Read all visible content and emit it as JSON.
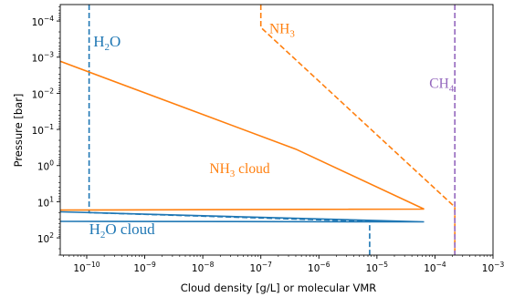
{
  "chart_data": {
    "type": "line",
    "title": "",
    "xlabel": "Cloud density [g/L] or molecular VMR",
    "ylabel": "Pressure [bar]",
    "xscale": "log",
    "yscale": "log",
    "y_inverted": true,
    "xlim": [
      3.5e-11,
      0.001
    ],
    "ylim": [
      300,
      3.5e-05
    ],
    "grid": false,
    "legend": "none",
    "x_tick_labels": [
      {
        "value": 1e-10,
        "base": "10",
        "exp": "−10"
      },
      {
        "value": 1e-09,
        "base": "10",
        "exp": "−9"
      },
      {
        "value": 1e-08,
        "base": "10",
        "exp": "−8"
      },
      {
        "value": 1e-07,
        "base": "10",
        "exp": "−7"
      },
      {
        "value": 1e-06,
        "base": "10",
        "exp": "−6"
      },
      {
        "value": 1e-05,
        "base": "10",
        "exp": "−5"
      },
      {
        "value": 0.0001,
        "base": "10",
        "exp": "−4"
      },
      {
        "value": 0.001,
        "base": "10",
        "exp": "−3"
      }
    ],
    "y_tick_labels": [
      {
        "value": 0.0001,
        "base": "10",
        "exp": "−4"
      },
      {
        "value": 0.001,
        "base": "10",
        "exp": "−3"
      },
      {
        "value": 0.01,
        "base": "10",
        "exp": "−2"
      },
      {
        "value": 0.1,
        "base": "10",
        "exp": "−1"
      },
      {
        "value": 1,
        "base": "10",
        "exp": "0"
      },
      {
        "value": 10,
        "base": "10",
        "exp": "1"
      },
      {
        "value": 100,
        "base": "10",
        "exp": "2"
      }
    ],
    "colors": {
      "h2o": "#1f77b4",
      "nh3": "#ff7f0e",
      "ch4": "#9467bd"
    },
    "series": [
      {
        "id": "h2o-vmr",
        "color": "#1f77b4",
        "style": "dashed",
        "points": [
          [
            1.1e-10,
            3.5e-05
          ],
          [
            1.1e-10,
            20
          ],
          [
            7.5e-06,
            35
          ],
          [
            7.5e-06,
            300
          ]
        ]
      },
      {
        "id": "nh3-vmr",
        "color": "#ff7f0e",
        "style": "dashed",
        "points": [
          [
            1e-07,
            3.5e-05
          ],
          [
            1e-07,
            0.00015
          ],
          [
            0.00022,
            14
          ],
          [
            0.00022,
            300
          ]
        ]
      },
      {
        "id": "ch4-vmr",
        "color": "#9467bd",
        "style": "dashed",
        "points": [
          [
            0.00022,
            3.5e-05
          ],
          [
            0.00022,
            300
          ]
        ]
      },
      {
        "id": "nh3-cloud",
        "color": "#ff7f0e",
        "style": "solid",
        "points": [
          [
            3.5e-11,
            0.0013
          ],
          [
            4e-07,
            0.35
          ],
          [
            6.5e-05,
            16
          ],
          [
            3.5e-11,
            17
          ]
        ]
      },
      {
        "id": "h2o-cloud",
        "color": "#1f77b4",
        "style": "solid",
        "points": [
          [
            3.5e-11,
            19
          ],
          [
            6.5e-05,
            36
          ],
          [
            3.5e-11,
            35
          ]
        ]
      }
    ],
    "annotations": [
      {
        "text": "H",
        "sub": "2",
        "tail": "O",
        "color": "#1f77b4",
        "x": 1.3e-10,
        "y": 0.0005,
        "size": "large"
      },
      {
        "text": "NH",
        "sub": "3",
        "tail": "",
        "color": "#ff7f0e",
        "x": 1.4e-07,
        "y": 0.00022,
        "size": "small"
      },
      {
        "text": "CH",
        "sub": "4",
        "tail": "",
        "color": "#9467bd",
        "x": 8e-05,
        "y": 0.007,
        "size": "small"
      },
      {
        "text": "NH",
        "sub": "3",
        "tail": " cloud",
        "color": "#ff7f0e",
        "x": 1.3e-08,
        "y": 1.6,
        "size": "small"
      },
      {
        "text": "H",
        "sub": "2",
        "tail": "O cloud",
        "color": "#1f77b4",
        "x": 1.1e-10,
        "y": 80,
        "size": "large"
      }
    ]
  }
}
